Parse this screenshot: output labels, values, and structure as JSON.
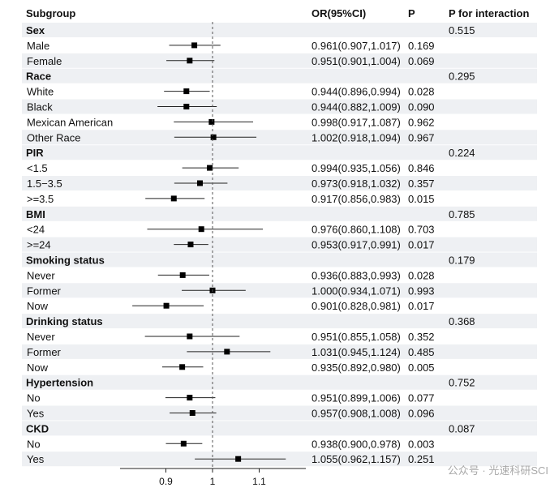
{
  "header": {
    "subgroup": "Subgroup",
    "or_ci": "OR(95%CI)",
    "p": "P",
    "p_interaction": "P for interaction"
  },
  "watermark": "公众号 · 光速科研SCI",
  "colors": {
    "stripe": "#eef0f3",
    "text": "#111111",
    "point": "#000000",
    "refline": "#555555"
  },
  "chart_data": {
    "type": "forest",
    "reference_line": 1,
    "xlim": [
      0.8,
      1.2
    ],
    "x_ticks": [
      0.9,
      1,
      1.1
    ],
    "x_tick_labels": [
      "0.9",
      "1",
      "1.1"
    ],
    "groups": [
      {
        "label": "Sex",
        "p_interaction": "0.515",
        "rows": [
          {
            "label": "Male",
            "or": 0.961,
            "lo": 0.907,
            "hi": 1.017,
            "text": "0.961(0.907,1.017)",
            "p": "0.169"
          },
          {
            "label": "Female",
            "or": 0.951,
            "lo": 0.901,
            "hi": 1.004,
            "text": "0.951(0.901,1.004)",
            "p": "0.069"
          }
        ]
      },
      {
        "label": "Race",
        "p_interaction": "0.295",
        "rows": [
          {
            "label": "White",
            "or": 0.944,
            "lo": 0.896,
            "hi": 0.994,
            "text": "0.944(0.896,0.994)",
            "p": "0.028"
          },
          {
            "label": "Black",
            "or": 0.944,
            "lo": 0.882,
            "hi": 1.009,
            "text": "0.944(0.882,1.009)",
            "p": "0.090"
          },
          {
            "label": "Mexican American",
            "or": 0.998,
            "lo": 0.917,
            "hi": 1.087,
            "text": "0.998(0.917,1.087)",
            "p": "0.962"
          },
          {
            "label": "Other Race",
            "or": 1.002,
            "lo": 0.918,
            "hi": 1.094,
            "text": "1.002(0.918,1.094)",
            "p": "0.967"
          }
        ]
      },
      {
        "label": "PIR",
        "p_interaction": "0.224",
        "rows": [
          {
            "label": "<1.5",
            "or": 0.994,
            "lo": 0.935,
            "hi": 1.056,
            "text": "0.994(0.935,1.056)",
            "p": "0.846"
          },
          {
            "label": "1.5−3.5",
            "or": 0.973,
            "lo": 0.918,
            "hi": 1.032,
            "text": "0.973(0.918,1.032)",
            "p": "0.357"
          },
          {
            "label": ">=3.5",
            "or": 0.917,
            "lo": 0.856,
            "hi": 0.983,
            "text": "0.917(0.856,0.983)",
            "p": "0.015"
          }
        ]
      },
      {
        "label": "BMI",
        "p_interaction": "0.785",
        "rows": [
          {
            "label": "<24",
            "or": 0.976,
            "lo": 0.86,
            "hi": 1.108,
            "text": "0.976(0.860,1.108)",
            "p": "0.703"
          },
          {
            "label": ">=24",
            "or": 0.953,
            "lo": 0.917,
            "hi": 0.991,
            "text": "0.953(0.917,0.991)",
            "p": "0.017"
          }
        ]
      },
      {
        "label": "Smoking status",
        "p_interaction": "0.179",
        "rows": [
          {
            "label": "Never",
            "or": 0.936,
            "lo": 0.883,
            "hi": 0.993,
            "text": "0.936(0.883,0.993)",
            "p": "0.028"
          },
          {
            "label": "Former",
            "or": 1.0,
            "lo": 0.934,
            "hi": 1.071,
            "text": "1.000(0.934,1.071)",
            "p": "0.993"
          },
          {
            "label": "Now",
            "or": 0.901,
            "lo": 0.828,
            "hi": 0.981,
            "text": "0.901(0.828,0.981)",
            "p": "0.017"
          }
        ]
      },
      {
        "label": "Drinking status",
        "p_interaction": "0.368",
        "rows": [
          {
            "label": "Never",
            "or": 0.951,
            "lo": 0.855,
            "hi": 1.058,
            "text": "0.951(0.855,1.058)",
            "p": "0.352"
          },
          {
            "label": "Former",
            "or": 1.031,
            "lo": 0.945,
            "hi": 1.124,
            "text": "1.031(0.945,1.124)",
            "p": "0.485"
          },
          {
            "label": "Now",
            "or": 0.935,
            "lo": 0.892,
            "hi": 0.98,
            "text": "0.935(0.892,0.980)",
            "p": "0.005"
          }
        ]
      },
      {
        "label": "Hypertension",
        "p_interaction": "0.752",
        "rows": [
          {
            "label": "No",
            "or": 0.951,
            "lo": 0.899,
            "hi": 1.006,
            "text": "0.951(0.899,1.006)",
            "p": "0.077"
          },
          {
            "label": "Yes",
            "or": 0.957,
            "lo": 0.908,
            "hi": 1.008,
            "text": "0.957(0.908,1.008)",
            "p": "0.096"
          }
        ]
      },
      {
        "label": "CKD",
        "p_interaction": "0.087",
        "rows": [
          {
            "label": "No",
            "or": 0.938,
            "lo": 0.9,
            "hi": 0.978,
            "text": "0.938(0.900,0.978)",
            "p": "0.003"
          },
          {
            "label": "Yes",
            "or": 1.055,
            "lo": 0.962,
            "hi": 1.157,
            "text": "1.055(0.962,1.157)",
            "p": "0.251"
          }
        ]
      }
    ]
  }
}
